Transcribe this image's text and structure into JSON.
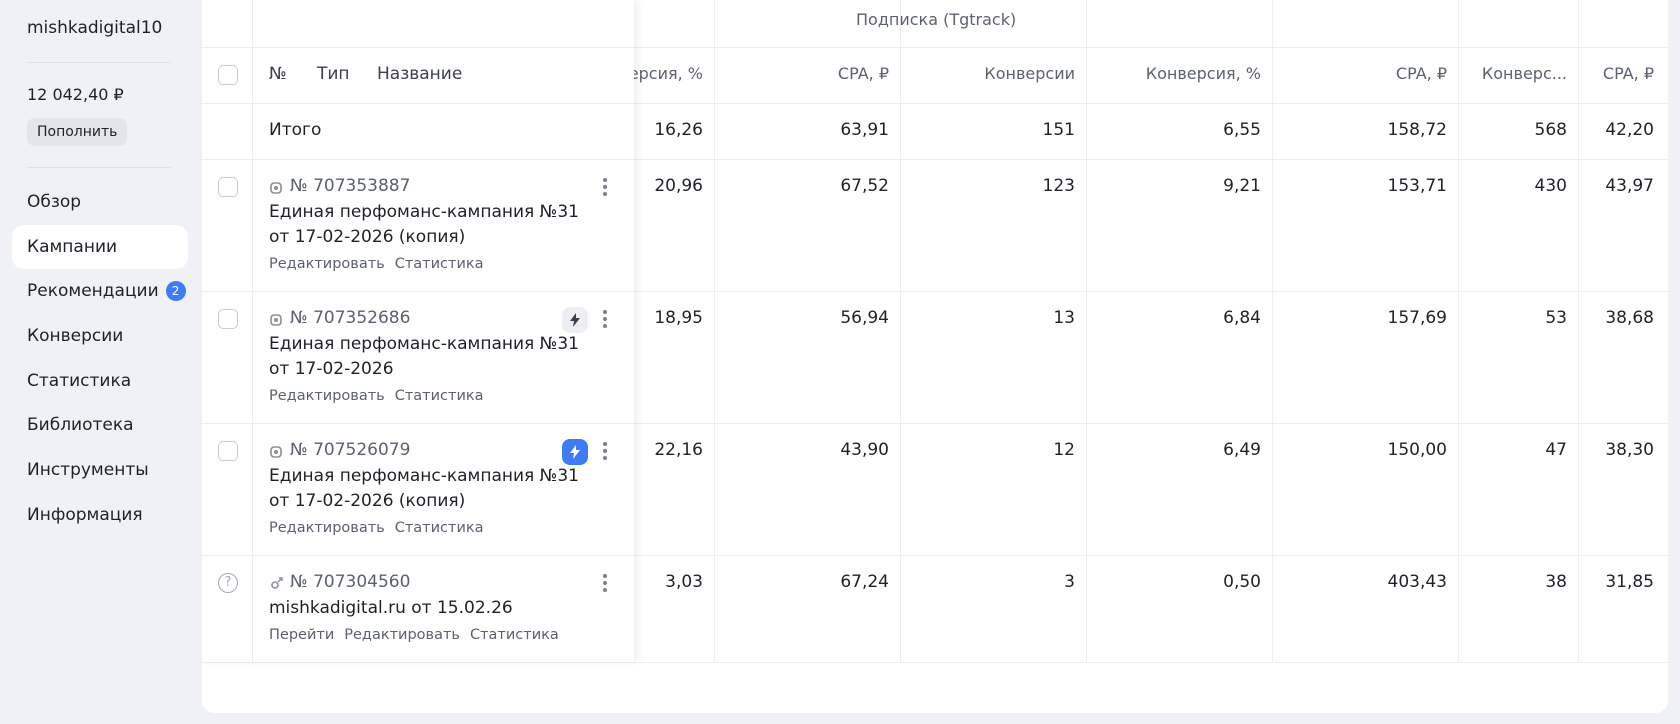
{
  "sidebar": {
    "account": "mishkadigital10",
    "balance": "12 042,40 ₽",
    "topup_label": "Пополнить",
    "nav": [
      {
        "label": "Обзор"
      },
      {
        "label": "Кампании"
      },
      {
        "label": "Рекомендации",
        "badge": "2"
      },
      {
        "label": "Конверсии"
      },
      {
        "label": "Статистика"
      },
      {
        "label": "Библиотека"
      },
      {
        "label": "Инструменты"
      },
      {
        "label": "Информация"
      }
    ]
  },
  "table": {
    "group_header": "Подписка (Tgtrack)",
    "fixed_headers": {
      "num": "№",
      "type": "Тип",
      "name": "Название"
    },
    "headers": [
      "ерсия, %",
      "CPA, ₽",
      "Конверсии",
      "Конверсия, %",
      "CPA, ₽",
      "Конверс...",
      "CPA, ₽"
    ],
    "total": {
      "label": "Итого",
      "values": [
        "16,26",
        "63,91",
        "151",
        "6,55",
        "158,72",
        "568",
        "42,20"
      ]
    },
    "rows": [
      {
        "id": "№ 707353887",
        "name": "Единая перфоманс-кампания №31 от 17-02-2026 (копия)",
        "links": [
          "Редактировать",
          "Статистика"
        ],
        "values": [
          "20,96",
          "67,52",
          "123",
          "9,21",
          "153,71",
          "430",
          "43,97"
        ]
      },
      {
        "id": "№ 707352686",
        "name": "Единая перфоманс-кампания №31 от 17-02-2026",
        "links": [
          "Редактировать",
          "Статистика"
        ],
        "values": [
          "18,95",
          "56,94",
          "13",
          "6,84",
          "157,69",
          "53",
          "38,68"
        ]
      },
      {
        "id": "№ 707526079",
        "name": "Единая перфоманс-кампания №31 от 17-02-2026 (копия)",
        "links": [
          "Редактировать",
          "Статистика"
        ],
        "values": [
          "22,16",
          "43,90",
          "12",
          "6,49",
          "150,00",
          "47",
          "38,30"
        ]
      },
      {
        "id": "№ 707304560",
        "name": "mishkadigital.ru от 15.02.26",
        "links": [
          "Перейти",
          "Редактировать",
          "Статистика"
        ],
        "values": [
          "3,03",
          "67,24",
          "3",
          "0,50",
          "403,43",
          "38",
          "31,85"
        ],
        "help": "?"
      }
    ]
  },
  "colors": {
    "accent": "#3d7cf6",
    "background": "#eff1f6",
    "card": "#ffffff"
  }
}
